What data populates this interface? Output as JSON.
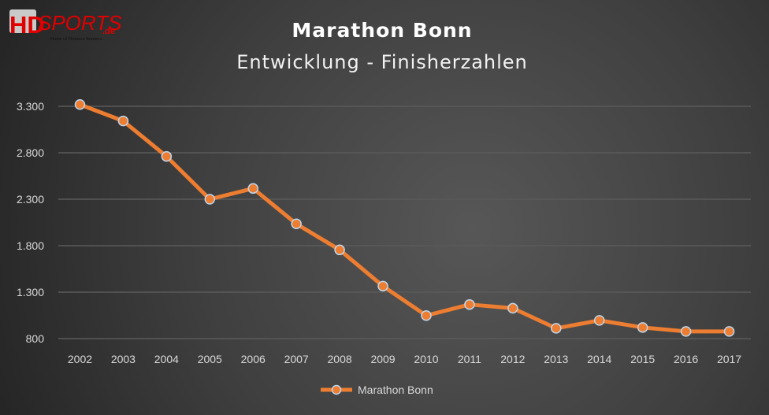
{
  "logo": {
    "main": "HD",
    "brand": "SPORTS",
    "tld": ".de",
    "tagline": "Home of Distance Runners"
  },
  "colors": {
    "series": "#ED7D31",
    "marker_border": "#BDD7EE",
    "grid": "#5A5A5A",
    "text": "#D9D9D9",
    "title": "#FFFFFF"
  },
  "chart_data": {
    "type": "line",
    "title": "Marathon Bonn",
    "subtitle": "Entwicklung - Finisherzahlen",
    "xlabel": "",
    "ylabel": "",
    "categories": [
      "2002",
      "2003",
      "2004",
      "2005",
      "2006",
      "2007",
      "2008",
      "2009",
      "2010",
      "2011",
      "2012",
      "2013",
      "2014",
      "2015",
      "2016",
      "2017"
    ],
    "series": [
      {
        "name": "Marathon Bonn",
        "values": [
          3319,
          3142,
          2761,
          2300,
          2416,
          2035,
          1755,
          1365,
          1048,
          1167,
          1127,
          911,
          996,
          920,
          877,
          877
        ]
      }
    ],
    "ylim": [
      800,
      3300
    ],
    "yticks": [
      800,
      1300,
      1800,
      2300,
      2800,
      3300
    ],
    "ytick_labels": [
      "800",
      "1.300",
      "1.800",
      "2.300",
      "2.800",
      "3.300"
    ],
    "grid": "horizontal",
    "legend": "bottom",
    "markers": true
  }
}
